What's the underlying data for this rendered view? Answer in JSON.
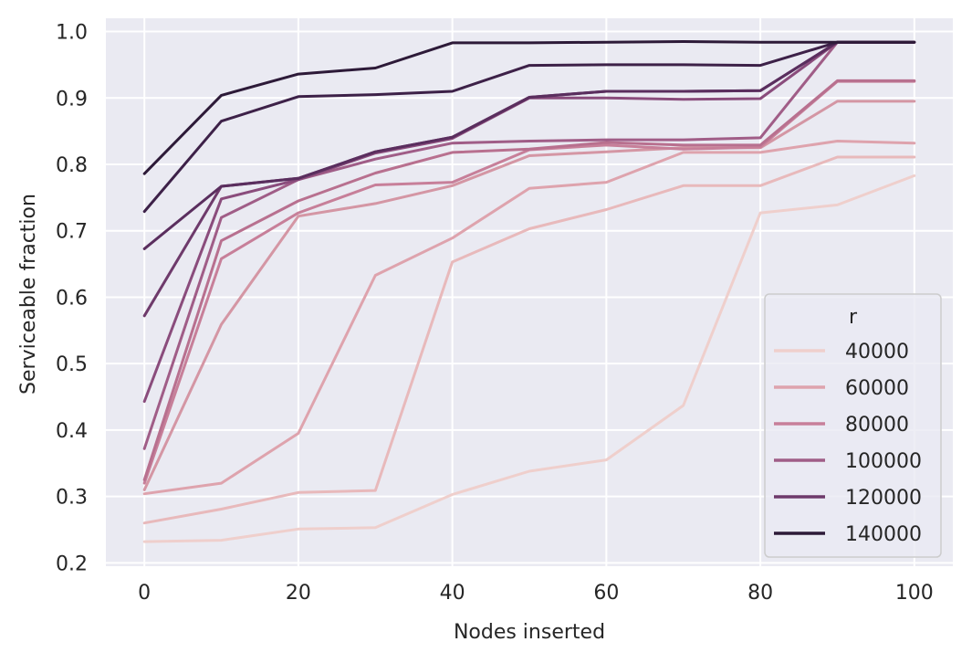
{
  "chart_data": {
    "type": "line",
    "xlabel": "Nodes inserted",
    "ylabel": "Serviceable fraction",
    "xlim": [
      -5,
      105
    ],
    "ylim": [
      0.195,
      1.02
    ],
    "x_ticks": [
      0,
      20,
      40,
      60,
      80,
      100
    ],
    "x_tick_labels": [
      "0",
      "20",
      "40",
      "60",
      "80",
      "100"
    ],
    "y_ticks": [
      0.2,
      0.3,
      0.4,
      0.5,
      0.6,
      0.7,
      0.8,
      0.9,
      1.0
    ],
    "y_tick_labels": [
      "0.2",
      "0.3",
      "0.4",
      "0.5",
      "0.6",
      "0.7",
      "0.8",
      "0.9",
      "1.0"
    ],
    "grid": true,
    "legend_title": "r",
    "legend_placement": "lower-right",
    "background_color": "#eaeaf2",
    "x": [
      0,
      10,
      20,
      30,
      40,
      50,
      60,
      70,
      80,
      90,
      100
    ],
    "lines": [
      {
        "group": "r=40000",
        "values": [
          0.232,
          0.234,
          0.251,
          0.253,
          0.303,
          0.338,
          0.355,
          0.437,
          0.727,
          0.739,
          0.783
        ],
        "color": "#efcfcc"
      },
      {
        "group": "r=40000",
        "values": [
          0.26,
          0.281,
          0.306,
          0.309,
          0.653,
          0.703,
          0.732,
          0.768,
          0.768,
          0.811,
          0.811
        ],
        "color": "#e8b9bb"
      },
      {
        "group": "r=60000",
        "values": [
          0.304,
          0.32,
          0.395,
          0.633,
          0.689,
          0.764,
          0.773,
          0.818,
          0.818,
          0.835,
          0.832
        ],
        "color": "#dea3ad"
      },
      {
        "group": "r=60000",
        "values": [
          0.31,
          0.559,
          0.722,
          0.741,
          0.768,
          0.813,
          0.819,
          0.825,
          0.825,
          0.895,
          0.895
        ],
        "color": "#d496a4"
      },
      {
        "group": "r=80000",
        "values": [
          0.32,
          0.658,
          0.727,
          0.769,
          0.773,
          0.822,
          0.829,
          0.823,
          0.826,
          0.925,
          0.925
        ],
        "color": "#c77f99"
      },
      {
        "group": "r=80000",
        "values": [
          0.325,
          0.685,
          0.745,
          0.787,
          0.818,
          0.823,
          0.833,
          0.829,
          0.829,
          0.926,
          0.926
        ],
        "color": "#b8708f"
      },
      {
        "group": "r=100000",
        "values": [
          0.372,
          0.72,
          0.777,
          0.808,
          0.832,
          0.835,
          0.837,
          0.837,
          0.84,
          0.984,
          0.984
        ],
        "color": "#a05d87"
      },
      {
        "group": "r=100000",
        "values": [
          0.443,
          0.748,
          0.777,
          0.817,
          0.839,
          0.9,
          0.9,
          0.898,
          0.899,
          0.984,
          0.984
        ],
        "color": "#8a4c7c"
      },
      {
        "group": "r=120000",
        "values": [
          0.572,
          0.767,
          0.779,
          0.819,
          0.841,
          0.901,
          0.91,
          0.91,
          0.911,
          0.984,
          0.984
        ],
        "color": "#6e3a6b"
      },
      {
        "group": "r=120000",
        "values": [
          0.673,
          0.767,
          0.779,
          0.819,
          0.841,
          0.901,
          0.91,
          0.91,
          0.911,
          0.984,
          0.984
        ],
        "color": "#5a2e5e"
      },
      {
        "group": "r=140000",
        "values": [
          0.729,
          0.865,
          0.902,
          0.905,
          0.91,
          0.949,
          0.95,
          0.95,
          0.949,
          0.984,
          0.984
        ],
        "color": "#3d2148"
      },
      {
        "group": "r=140000",
        "values": [
          0.786,
          0.904,
          0.936,
          0.945,
          0.983,
          0.983,
          0.984,
          0.985,
          0.984,
          0.984,
          0.984
        ],
        "color": "#2d1a38"
      }
    ],
    "legend": [
      {
        "label": "40000",
        "color": "#efcfcc"
      },
      {
        "label": "60000",
        "color": "#dea3ad"
      },
      {
        "label": "80000",
        "color": "#c77f99"
      },
      {
        "label": "100000",
        "color": "#a05d87"
      },
      {
        "label": "120000",
        "color": "#6e3a6b"
      },
      {
        "label": "140000",
        "color": "#2d1a38"
      }
    ]
  }
}
